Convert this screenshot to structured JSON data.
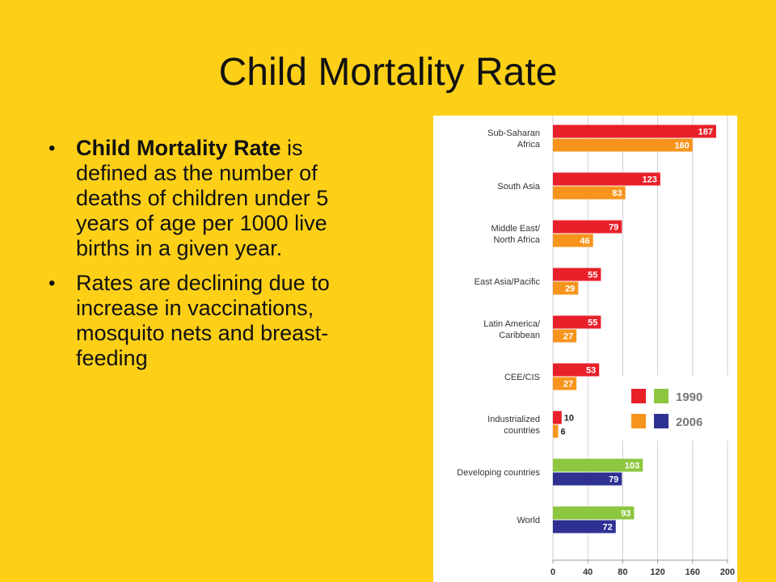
{
  "slide": {
    "title": "Child Mortality Rate",
    "bullets": [
      {
        "bold": "Child Mortality Rate",
        "text": " is defined as the number of deaths of children under 5 years of age per 1000 live births in a given year."
      },
      {
        "bold": "",
        "text": "Rates are declining due to increase in vaccinations, mosquito nets and breast-feeding"
      }
    ]
  },
  "chart_data": {
    "type": "bar",
    "orientation": "horizontal",
    "categories": [
      [
        "Sub-Saharan",
        "Africa"
      ],
      [
        "South Asia"
      ],
      [
        "Middle East/",
        "North Africa"
      ],
      [
        "East Asia/Pacific"
      ],
      [
        "Latin America/",
        "Caribbean"
      ],
      [
        "CEE/CIS"
      ],
      [
        "Industrialized",
        "countries"
      ],
      [
        "Developing countries"
      ],
      [
        "World"
      ]
    ],
    "values_1990": [
      187,
      123,
      79,
      55,
      55,
      53,
      10,
      103,
      93
    ],
    "values_2006": [
      160,
      83,
      46,
      29,
      27,
      27,
      6,
      79,
      72
    ],
    "colors_1990": [
      "#E8202A",
      "#E8202A",
      "#E8202A",
      "#E8202A",
      "#E8202A",
      "#E8202A",
      "#E8202A",
      "#8DC63F",
      "#8DC63F"
    ],
    "colors_2006": [
      "#F7941D",
      "#F7941D",
      "#F7941D",
      "#F7941D",
      "#F7941D",
      "#F7941D",
      "#F7941D",
      "#2E3192",
      "#2E3192"
    ],
    "legend": {
      "placement": "right-middle",
      "entries": [
        {
          "label": "1990",
          "colors": [
            "#E8202A",
            "#8DC63F"
          ]
        },
        {
          "label": "2006",
          "colors": [
            "#F7941D",
            "#2E3192"
          ]
        }
      ]
    },
    "xlim": [
      0,
      200
    ],
    "xticks": [
      0,
      40,
      80,
      120,
      160,
      200
    ],
    "grid": true,
    "title": "",
    "xlabel": "",
    "ylabel": ""
  }
}
